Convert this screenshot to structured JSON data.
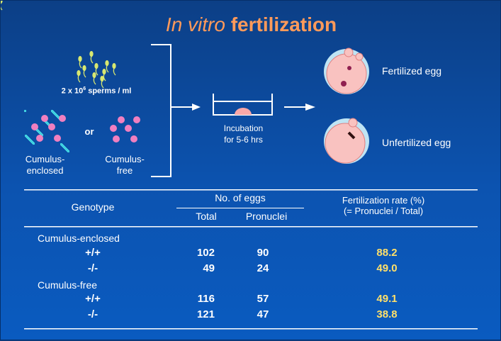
{
  "title": {
    "italic": "In vitro",
    "rest": "fertilization"
  },
  "sperm_label": {
    "base": "2 x 10",
    "exp": "6",
    "unit": " sperms / ml"
  },
  "or_label": "or",
  "cumulus_enclosed_label": [
    "Cumulus-",
    "enclosed"
  ],
  "cumulus_free_label": [
    "Cumulus-",
    "free"
  ],
  "incubation_label": [
    "Incubation",
    "for 5-6 hrs"
  ],
  "fertilized_label": "Fertilized egg",
  "unfertilized_label": "Unfertilized egg",
  "table": {
    "genotype_header": "Genotype",
    "eggs_header": "No. of eggs",
    "total_header": "Total",
    "pronuclei_header": "Pronuclei",
    "rate_header": [
      "Fertilization rate (%)",
      "(= Pronuclei / Total)"
    ],
    "groups": [
      {
        "name": "Cumulus-enclosed",
        "rows": [
          {
            "genotype": "+/+",
            "total": "102",
            "pronuclei": "90",
            "rate": "88.2"
          },
          {
            "genotype": "-/-",
            "total": "49",
            "pronuclei": "24",
            "rate": "49.0"
          }
        ]
      },
      {
        "name": "Cumulus-free",
        "rows": [
          {
            "genotype": "+/+",
            "total": "116",
            "pronuclei": "57",
            "rate": "49.1"
          },
          {
            "genotype": "-/-",
            "total": "121",
            "pronuclei": "47",
            "rate": "38.8"
          }
        ]
      }
    ]
  },
  "colors": {
    "title": "#ff9a5a",
    "rate": "#ffe06a",
    "egg": "#f9c2c0",
    "cumulus": "#40d0e0",
    "oocyte": "#f07fc0"
  }
}
